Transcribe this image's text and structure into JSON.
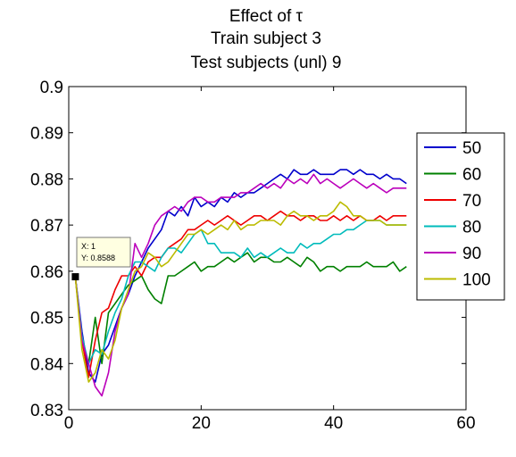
{
  "chart_data": {
    "type": "line",
    "title": [
      "Effect of τ",
      "Train subject 3",
      "Test subjects (unl) 9"
    ],
    "xlabel": "",
    "ylabel": "",
    "xlim": [
      0,
      60
    ],
    "ylim": [
      0.83,
      0.9
    ],
    "xticks": [
      "0",
      "20",
      "40",
      "60"
    ],
    "yticks": [
      "0.83",
      "0.84",
      "0.85",
      "0.86",
      "0.87",
      "0.88",
      "0.89",
      "0.9"
    ],
    "grid": false,
    "legend_position": "right",
    "series": [
      {
        "name": "50",
        "color": "#0000cc",
        "values": [
          [
            1,
            0.8588
          ],
          [
            2,
            0.847
          ],
          [
            3,
            0.838
          ],
          [
            4,
            0.836
          ],
          [
            5,
            0.842
          ],
          [
            6,
            0.844
          ],
          [
            7,
            0.848
          ],
          [
            8,
            0.852
          ],
          [
            9,
            0.855
          ],
          [
            10,
            0.859
          ],
          [
            11,
            0.862
          ],
          [
            12,
            0.865
          ],
          [
            13,
            0.867
          ],
          [
            14,
            0.869
          ],
          [
            15,
            0.873
          ],
          [
            16,
            0.872
          ],
          [
            17,
            0.874
          ],
          [
            18,
            0.872
          ],
          [
            19,
            0.876
          ],
          [
            20,
            0.874
          ],
          [
            21,
            0.875
          ],
          [
            22,
            0.874
          ],
          [
            23,
            0.876
          ],
          [
            24,
            0.875
          ],
          [
            25,
            0.877
          ],
          [
            26,
            0.876
          ],
          [
            27,
            0.877
          ],
          [
            28,
            0.877
          ],
          [
            29,
            0.878
          ],
          [
            30,
            0.879
          ],
          [
            31,
            0.88
          ],
          [
            32,
            0.881
          ],
          [
            33,
            0.88
          ],
          [
            34,
            0.882
          ],
          [
            35,
            0.881
          ],
          [
            36,
            0.881
          ],
          [
            37,
            0.882
          ],
          [
            38,
            0.881
          ],
          [
            39,
            0.881
          ],
          [
            40,
            0.881
          ],
          [
            41,
            0.882
          ],
          [
            42,
            0.882
          ],
          [
            43,
            0.881
          ],
          [
            44,
            0.882
          ],
          [
            45,
            0.881
          ],
          [
            46,
            0.881
          ],
          [
            47,
            0.88
          ],
          [
            48,
            0.881
          ],
          [
            49,
            0.88
          ],
          [
            50,
            0.88
          ],
          [
            51,
            0.879
          ]
        ]
      },
      {
        "name": "60",
        "color": "#008000",
        "values": [
          [
            1,
            0.8588
          ],
          [
            2,
            0.845
          ],
          [
            3,
            0.84
          ],
          [
            4,
            0.85
          ],
          [
            5,
            0.84
          ],
          [
            6,
            0.851
          ],
          [
            7,
            0.853
          ],
          [
            8,
            0.855
          ],
          [
            9,
            0.857
          ],
          [
            10,
            0.858
          ],
          [
            11,
            0.859
          ],
          [
            12,
            0.856
          ],
          [
            13,
            0.854
          ],
          [
            14,
            0.853
          ],
          [
            15,
            0.859
          ],
          [
            16,
            0.859
          ],
          [
            17,
            0.86
          ],
          [
            18,
            0.861
          ],
          [
            19,
            0.862
          ],
          [
            20,
            0.86
          ],
          [
            21,
            0.861
          ],
          [
            22,
            0.861
          ],
          [
            23,
            0.862
          ],
          [
            24,
            0.863
          ],
          [
            25,
            0.862
          ],
          [
            26,
            0.863
          ],
          [
            27,
            0.864
          ],
          [
            28,
            0.862
          ],
          [
            29,
            0.863
          ],
          [
            30,
            0.863
          ],
          [
            31,
            0.862
          ],
          [
            32,
            0.862
          ],
          [
            33,
            0.863
          ],
          [
            34,
            0.862
          ],
          [
            35,
            0.861
          ],
          [
            36,
            0.863
          ],
          [
            37,
            0.862
          ],
          [
            38,
            0.86
          ],
          [
            39,
            0.861
          ],
          [
            40,
            0.861
          ],
          [
            41,
            0.86
          ],
          [
            42,
            0.861
          ],
          [
            43,
            0.861
          ],
          [
            44,
            0.861
          ],
          [
            45,
            0.862
          ],
          [
            46,
            0.861
          ],
          [
            47,
            0.861
          ],
          [
            48,
            0.861
          ],
          [
            49,
            0.862
          ],
          [
            50,
            0.86
          ],
          [
            51,
            0.861
          ]
        ]
      },
      {
        "name": "70",
        "color": "#ee0000",
        "values": [
          [
            1,
            0.8588
          ],
          [
            2,
            0.845
          ],
          [
            3,
            0.837
          ],
          [
            4,
            0.845
          ],
          [
            5,
            0.851
          ],
          [
            6,
            0.852
          ],
          [
            7,
            0.856
          ],
          [
            8,
            0.859
          ],
          [
            9,
            0.859
          ],
          [
            10,
            0.861
          ],
          [
            11,
            0.859
          ],
          [
            12,
            0.862
          ],
          [
            13,
            0.863
          ],
          [
            14,
            0.863
          ],
          [
            15,
            0.865
          ],
          [
            16,
            0.866
          ],
          [
            17,
            0.867
          ],
          [
            18,
            0.869
          ],
          [
            19,
            0.869
          ],
          [
            20,
            0.87
          ],
          [
            21,
            0.871
          ],
          [
            22,
            0.87
          ],
          [
            23,
            0.871
          ],
          [
            24,
            0.872
          ],
          [
            25,
            0.871
          ],
          [
            26,
            0.87
          ],
          [
            27,
            0.871
          ],
          [
            28,
            0.872
          ],
          [
            29,
            0.872
          ],
          [
            30,
            0.871
          ],
          [
            31,
            0.872
          ],
          [
            32,
            0.873
          ],
          [
            33,
            0.872
          ],
          [
            34,
            0.872
          ],
          [
            35,
            0.871
          ],
          [
            36,
            0.872
          ],
          [
            37,
            0.872
          ],
          [
            38,
            0.871
          ],
          [
            39,
            0.871
          ],
          [
            40,
            0.872
          ],
          [
            41,
            0.871
          ],
          [
            42,
            0.872
          ],
          [
            43,
            0.871
          ],
          [
            44,
            0.872
          ],
          [
            45,
            0.871
          ],
          [
            46,
            0.871
          ],
          [
            47,
            0.872
          ],
          [
            48,
            0.871
          ],
          [
            49,
            0.872
          ],
          [
            50,
            0.872
          ],
          [
            51,
            0.872
          ]
        ]
      },
      {
        "name": "80",
        "color": "#00bbbb",
        "values": [
          [
            1,
            0.8588
          ],
          [
            2,
            0.846
          ],
          [
            3,
            0.84
          ],
          [
            4,
            0.843
          ],
          [
            5,
            0.842
          ],
          [
            6,
            0.847
          ],
          [
            7,
            0.851
          ],
          [
            8,
            0.854
          ],
          [
            9,
            0.859
          ],
          [
            10,
            0.862
          ],
          [
            11,
            0.862
          ],
          [
            12,
            0.861
          ],
          [
            13,
            0.86
          ],
          [
            14,
            0.863
          ],
          [
            15,
            0.865
          ],
          [
            16,
            0.865
          ],
          [
            17,
            0.864
          ],
          [
            18,
            0.866
          ],
          [
            19,
            0.868
          ],
          [
            20,
            0.869
          ],
          [
            21,
            0.866
          ],
          [
            22,
            0.866
          ],
          [
            23,
            0.864
          ],
          [
            24,
            0.864
          ],
          [
            25,
            0.864
          ],
          [
            26,
            0.863
          ],
          [
            27,
            0.865
          ],
          [
            28,
            0.863
          ],
          [
            29,
            0.864
          ],
          [
            30,
            0.863
          ],
          [
            31,
            0.864
          ],
          [
            32,
            0.865
          ],
          [
            33,
            0.864
          ],
          [
            34,
            0.864
          ],
          [
            35,
            0.866
          ],
          [
            36,
            0.865
          ],
          [
            37,
            0.866
          ],
          [
            38,
            0.866
          ],
          [
            39,
            0.867
          ],
          [
            40,
            0.868
          ],
          [
            41,
            0.868
          ],
          [
            42,
            0.869
          ],
          [
            43,
            0.869
          ],
          [
            44,
            0.87
          ],
          [
            45,
            0.871
          ],
          [
            46,
            0.871
          ],
          [
            47,
            0.871
          ],
          [
            48,
            0.87
          ],
          [
            49,
            0.87
          ],
          [
            50,
            0.87
          ],
          [
            51,
            0.87
          ]
        ]
      },
      {
        "name": "90",
        "color": "#bb00bb",
        "values": [
          [
            1,
            0.8588
          ],
          [
            2,
            0.845
          ],
          [
            3,
            0.84
          ],
          [
            4,
            0.835
          ],
          [
            5,
            0.833
          ],
          [
            6,
            0.838
          ],
          [
            7,
            0.847
          ],
          [
            8,
            0.852
          ],
          [
            9,
            0.855
          ],
          [
            10,
            0.866
          ],
          [
            11,
            0.863
          ],
          [
            12,
            0.866
          ],
          [
            13,
            0.87
          ],
          [
            14,
            0.872
          ],
          [
            15,
            0.873
          ],
          [
            16,
            0.874
          ],
          [
            17,
            0.873
          ],
          [
            18,
            0.875
          ],
          [
            19,
            0.876
          ],
          [
            20,
            0.876
          ],
          [
            21,
            0.875
          ],
          [
            22,
            0.875
          ],
          [
            23,
            0.876
          ],
          [
            24,
            0.876
          ],
          [
            25,
            0.876
          ],
          [
            26,
            0.877
          ],
          [
            27,
            0.877
          ],
          [
            28,
            0.878
          ],
          [
            29,
            0.879
          ],
          [
            30,
            0.878
          ],
          [
            31,
            0.879
          ],
          [
            32,
            0.878
          ],
          [
            33,
            0.88
          ],
          [
            34,
            0.879
          ],
          [
            35,
            0.88
          ],
          [
            36,
            0.879
          ],
          [
            37,
            0.881
          ],
          [
            38,
            0.879
          ],
          [
            39,
            0.88
          ],
          [
            40,
            0.879
          ],
          [
            41,
            0.878
          ],
          [
            42,
            0.879
          ],
          [
            43,
            0.88
          ],
          [
            44,
            0.879
          ],
          [
            45,
            0.878
          ],
          [
            46,
            0.879
          ],
          [
            47,
            0.878
          ],
          [
            48,
            0.877
          ],
          [
            49,
            0.878
          ],
          [
            50,
            0.878
          ],
          [
            51,
            0.878
          ]
        ]
      },
      {
        "name": "100",
        "color": "#bbbb00",
        "values": [
          [
            1,
            0.8588
          ],
          [
            2,
            0.843
          ],
          [
            3,
            0.836
          ],
          [
            4,
            0.838
          ],
          [
            5,
            0.843
          ],
          [
            6,
            0.841
          ],
          [
            7,
            0.845
          ],
          [
            8,
            0.852
          ],
          [
            9,
            0.856
          ],
          [
            10,
            0.86
          ],
          [
            11,
            0.861
          ],
          [
            12,
            0.864
          ],
          [
            13,
            0.863
          ],
          [
            14,
            0.861
          ],
          [
            15,
            0.862
          ],
          [
            16,
            0.864
          ],
          [
            17,
            0.866
          ],
          [
            18,
            0.868
          ],
          [
            19,
            0.868
          ],
          [
            20,
            0.869
          ],
          [
            21,
            0.868
          ],
          [
            22,
            0.869
          ],
          [
            23,
            0.87
          ],
          [
            24,
            0.869
          ],
          [
            25,
            0.871
          ],
          [
            26,
            0.869
          ],
          [
            27,
            0.87
          ],
          [
            28,
            0.87
          ],
          [
            29,
            0.871
          ],
          [
            30,
            0.871
          ],
          [
            31,
            0.871
          ],
          [
            32,
            0.87
          ],
          [
            33,
            0.872
          ],
          [
            34,
            0.873
          ],
          [
            35,
            0.872
          ],
          [
            36,
            0.872
          ],
          [
            37,
            0.871
          ],
          [
            38,
            0.872
          ],
          [
            39,
            0.872
          ],
          [
            40,
            0.873
          ],
          [
            41,
            0.875
          ],
          [
            42,
            0.874
          ],
          [
            43,
            0.872
          ],
          [
            44,
            0.872
          ],
          [
            45,
            0.871
          ],
          [
            46,
            0.871
          ],
          [
            47,
            0.871
          ],
          [
            48,
            0.87
          ],
          [
            49,
            0.87
          ],
          [
            50,
            0.87
          ],
          [
            51,
            0.87
          ]
        ]
      }
    ]
  },
  "datatip": {
    "x_text": "X: 1",
    "y_text": "Y: 0.8588",
    "x": 1,
    "y": 0.8588
  }
}
